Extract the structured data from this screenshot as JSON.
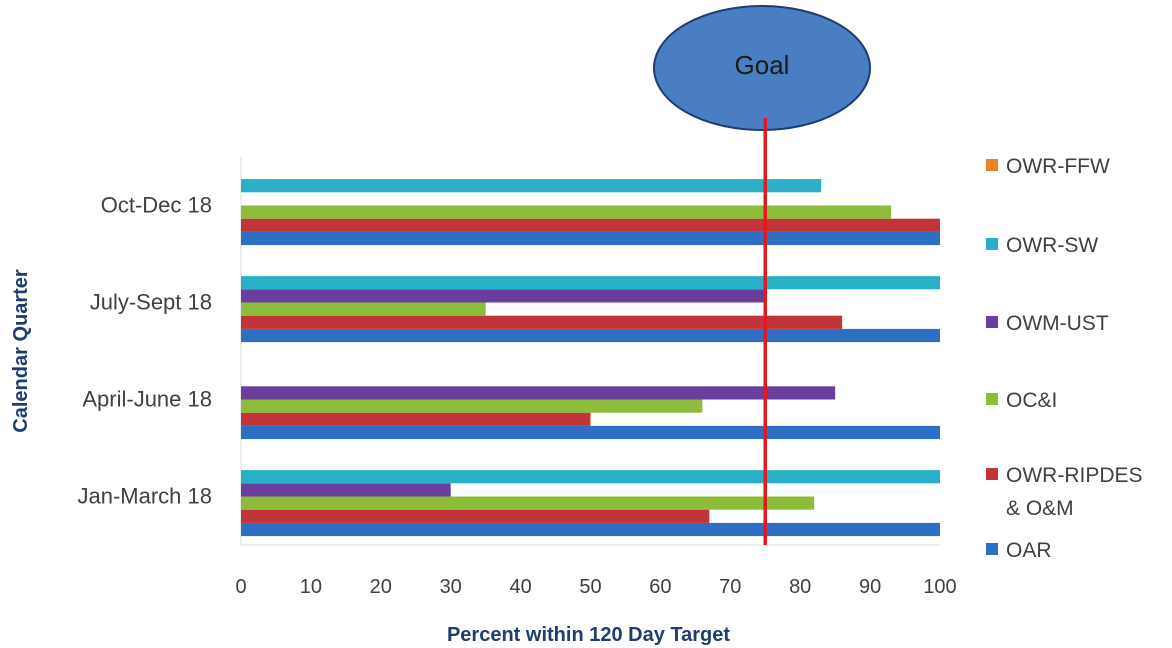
{
  "chart_data": {
    "type": "bar",
    "orientation": "horizontal",
    "xlabel": "Percent within 120 Day Target",
    "ylabel": "Calendar Quarter",
    "xlim": [
      0,
      100
    ],
    "xticks": [
      "0",
      "10",
      "20",
      "30",
      "40",
      "50",
      "60",
      "70",
      "80",
      "90",
      "100"
    ],
    "categories": [
      "Jan-March 18",
      "April-June 18",
      "July-Sept 18",
      "Oct-Dec 18"
    ],
    "series": [
      {
        "name": "OAR",
        "color": "#2e6fc4",
        "values": [
          100,
          100,
          100,
          100
        ]
      },
      {
        "name": "OWR-RIPDES & O&M",
        "color": "#c0343a",
        "values": [
          67,
          50,
          86,
          100
        ]
      },
      {
        "name": "OC&I",
        "color": "#8dbb3a",
        "values": [
          82,
          66,
          35,
          93
        ]
      },
      {
        "name": "OWM-UST",
        "color": "#6a3e9e",
        "values": [
          30,
          85,
          75,
          null
        ]
      },
      {
        "name": "OWR-SW",
        "color": "#29b0c6",
        "values": [
          100,
          null,
          100,
          83
        ]
      },
      {
        "name": "OWR-FFW",
        "color": "#e8832a",
        "values": [
          null,
          null,
          null,
          null
        ]
      }
    ],
    "legend": {
      "position": "right",
      "entries": [
        {
          "lines": [
            "OWR-FFW"
          ],
          "color": "#e8832a"
        },
        {
          "lines": [
            "OWR-SW"
          ],
          "color": "#29b0c6"
        },
        {
          "lines": [
            "OWM-UST"
          ],
          "color": "#6a3e9e"
        },
        {
          "lines": [
            "OC&I"
          ],
          "color": "#8dbb3a"
        },
        {
          "lines": [
            "OWR-RIPDES",
            "& O&M"
          ],
          "color": "#c0343a"
        },
        {
          "lines": [
            "OAR"
          ],
          "color": "#2e6fc4"
        }
      ]
    },
    "goal": {
      "label": "Goal",
      "value": 75,
      "line_color": "#e01b1b",
      "bubble_color": "#4a7ec3"
    }
  }
}
